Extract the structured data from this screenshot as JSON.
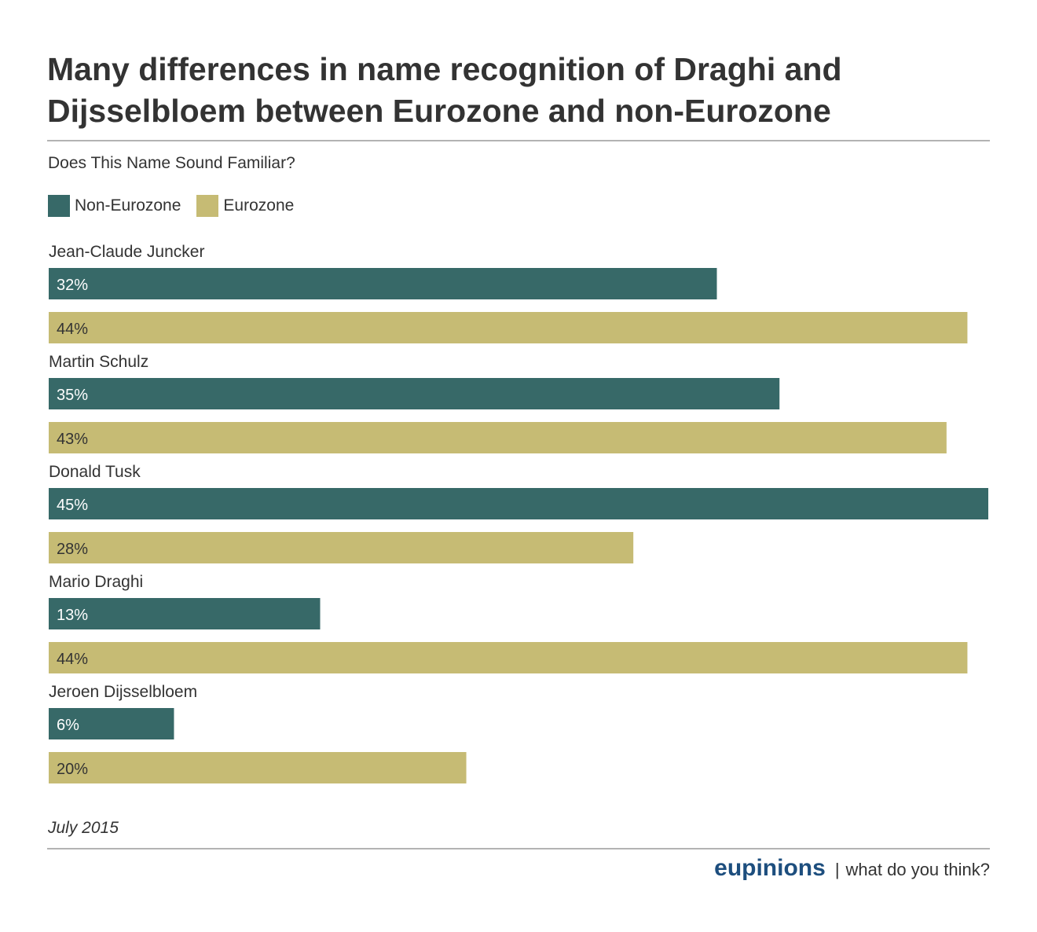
{
  "title": "Many differences in name recognition of Draghi and Dijsselbloem between Eurozone and non-Eurozone",
  "subtitle": "Does This Name Sound Familiar?",
  "date": "July 2015",
  "footer": {
    "brand": "eupinions",
    "separator": "|",
    "tagline": "what do you think?"
  },
  "colors": {
    "non_eurozone": "#376968",
    "eurozone": "#c6bb74",
    "brand": "#1d4e7e"
  },
  "chart_data": {
    "type": "bar",
    "orientation": "horizontal",
    "categories": [
      "Jean-Claude Juncker",
      "Martin Schulz",
      "Donald Tusk",
      "Mario Draghi",
      "Jeroen Dijsselbloem"
    ],
    "series": [
      {
        "name": "Non-Eurozone",
        "values": [
          32,
          35,
          45,
          13,
          6
        ],
        "labels": [
          "32%",
          "35%",
          "45%",
          "13%",
          "6%"
        ]
      },
      {
        "name": "Eurozone",
        "values": [
          44,
          43,
          28,
          44,
          20
        ],
        "labels": [
          "44%",
          "43%",
          "28%",
          "44%",
          "20%"
        ]
      }
    ],
    "legend": "top-left",
    "grid": false,
    "xlim": [
      0,
      45
    ]
  }
}
